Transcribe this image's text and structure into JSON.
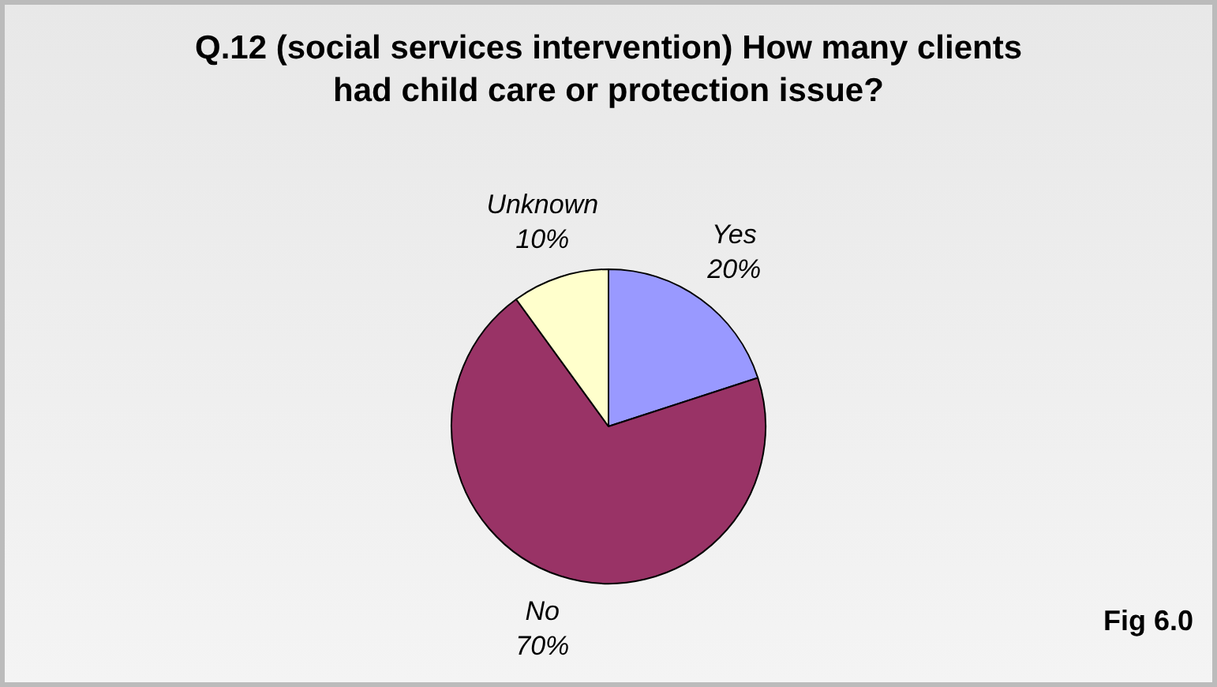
{
  "chart_data": {
    "type": "pie",
    "title": "Q.12 (social services intervention) How many clients had child care or protection issue?",
    "categories": [
      "Yes",
      "No",
      "Unknown"
    ],
    "values": [
      20,
      70,
      10
    ],
    "colors": [
      "#9999ff",
      "#993366",
      "#ffffcc"
    ],
    "value_labels": [
      "20%",
      "70%",
      "10%"
    ],
    "legend": false,
    "annotations": [
      "Fig 6.0"
    ]
  }
}
